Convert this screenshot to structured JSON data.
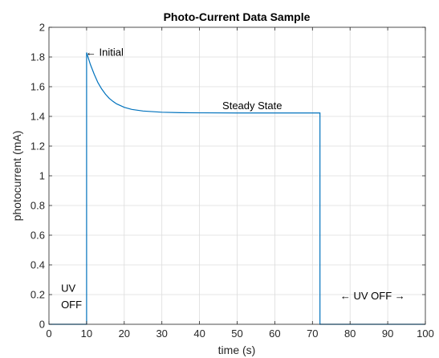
{
  "chart_data": {
    "type": "line",
    "title": "Photo-Current Data Sample",
    "xlabel": "time (s)",
    "ylabel": "photocurrent (mA)",
    "xlim": [
      0,
      100
    ],
    "ylim": [
      0,
      2
    ],
    "grid": true,
    "line_color": "#0072BD",
    "x_ticks": [
      "0",
      "10",
      "20",
      "30",
      "40",
      "50",
      "60",
      "70",
      "80",
      "90",
      "100"
    ],
    "y_ticks": [
      "0",
      "0.2",
      "0.4",
      "0.6",
      "0.8",
      "1",
      "1.2",
      "1.4",
      "1.6",
      "1.8",
      "2"
    ],
    "series": [
      {
        "x": [
          0,
          10,
          10,
          11,
          12,
          13,
          14,
          15,
          16,
          17,
          18,
          20,
          22,
          25,
          30,
          35,
          40,
          50,
          60,
          72,
          72,
          100
        ],
        "y": [
          0,
          0,
          1.83,
          1.75,
          1.685,
          1.628,
          1.585,
          1.55,
          1.522,
          1.501,
          1.484,
          1.461,
          1.447,
          1.436,
          1.428,
          1.425,
          1.424,
          1.423,
          1.423,
          1.423,
          0,
          0
        ]
      }
    ],
    "annotations": [
      {
        "text": "Initial",
        "x": 10,
        "y": 1.83,
        "arrow": "←"
      },
      {
        "text": "Steady State",
        "x": 45,
        "y": 1.46
      },
      {
        "text": "UV",
        "x": 3,
        "y": 0.24
      },
      {
        "text": "OFF",
        "x": 3,
        "y": 0.13
      },
      {
        "text": "← UV OFF →",
        "x": 86,
        "y": 0.19
      }
    ]
  }
}
